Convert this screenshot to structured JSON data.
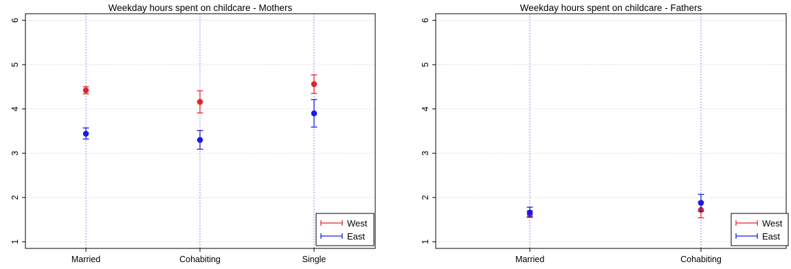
{
  "chart_data": [
    {
      "type": "scatter",
      "title": "Weekday hours spent on childcare - Mothers",
      "categories": [
        "Married",
        "Cohabiting",
        "Single"
      ],
      "ylim": [
        0.85,
        6.15
      ],
      "yticks": [
        1,
        2,
        3,
        4,
        5,
        6
      ],
      "grid": true,
      "legend": "bottom-right",
      "series": [
        {
          "name": "West",
          "color": "#e0262f",
          "values": [
            4.42,
            4.16,
            4.56
          ],
          "ci_low": [
            4.34,
            3.91,
            4.35
          ],
          "ci_high": [
            4.5,
            4.41,
            4.77
          ]
        },
        {
          "name": "East",
          "color": "#1a1ae6",
          "values": [
            3.44,
            3.3,
            3.9
          ],
          "ci_low": [
            3.32,
            3.09,
            3.59
          ],
          "ci_high": [
            3.57,
            3.51,
            4.21
          ]
        }
      ]
    },
    {
      "type": "scatter",
      "title": "Weekday hours spent on childcare - Fathers",
      "categories": [
        "Married",
        "Cohabiting"
      ],
      "ylim": [
        0.85,
        6.15
      ],
      "yticks": [
        1,
        2,
        3,
        4,
        5,
        6
      ],
      "grid": true,
      "legend": "bottom-right",
      "series": [
        {
          "name": "West",
          "color": "#e0262f",
          "values": [
            1.62,
            1.72
          ],
          "ci_low": [
            1.55,
            1.54
          ],
          "ci_high": [
            1.7,
            1.9
          ]
        },
        {
          "name": "East",
          "color": "#1a1ae6",
          "values": [
            1.66,
            1.88
          ],
          "ci_low": [
            1.56,
            1.69
          ],
          "ci_high": [
            1.78,
            2.07
          ]
        }
      ]
    }
  ]
}
